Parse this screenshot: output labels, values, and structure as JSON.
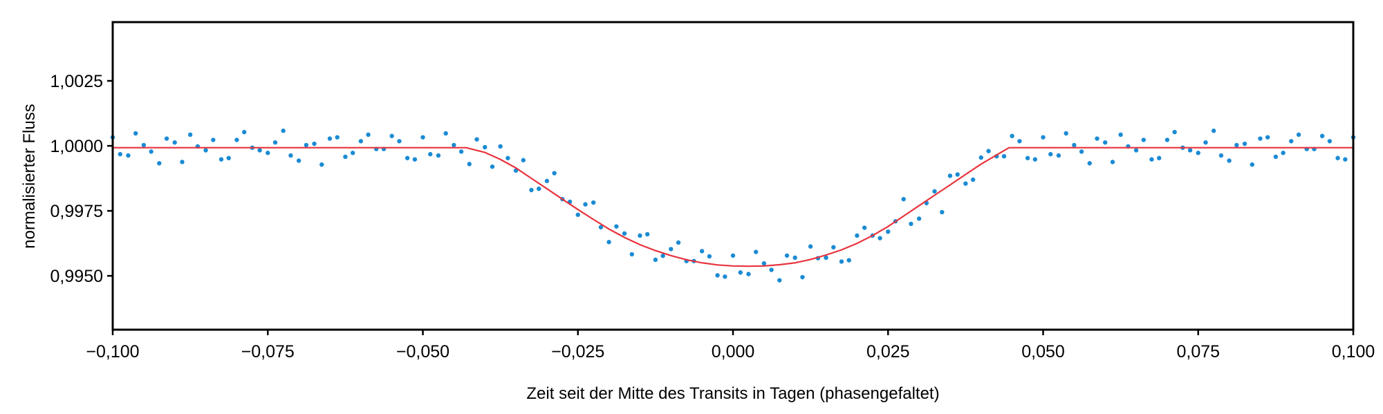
{
  "chart_data": {
    "type": "scatter",
    "title": "",
    "xlabel": "Zeit seit der Mitte des Transits in Tagen (phasengefaltet)",
    "ylabel": "normalisierter Fluss",
    "xlim": [
      -0.1,
      0.1
    ],
    "ylim": [
      0.99293,
      1.00476
    ],
    "grid": false,
    "x_ticks": [
      -0.1,
      -0.075,
      -0.05,
      -0.025,
      0.0,
      0.025,
      0.05,
      0.075,
      0.1
    ],
    "x_tick_labels": [
      "−0,100",
      "−0,075",
      "−0,050",
      "−0,025",
      "0,000",
      "0,025",
      "0,050",
      "0,075",
      "0,100"
    ],
    "y_ticks": [
      0.995,
      0.9975,
      1.0,
      1.0025
    ],
    "y_tick_labels": [
      "0,9950",
      "0,9975",
      "1,0000",
      "1,0025"
    ],
    "colors": {
      "points": "#1a8bd3",
      "model": "#e8323c",
      "axes": "#000000"
    },
    "series": [
      {
        "type": "scatter",
        "x": [
          -0.1,
          -0.0988,
          -0.0975,
          -0.0963,
          -0.095,
          -0.0938,
          -0.0925,
          -0.0913,
          -0.09,
          -0.0888,
          -0.0875,
          -0.0863,
          -0.085,
          -0.0838,
          -0.0825,
          -0.0813,
          -0.08,
          -0.0788,
          -0.0775,
          -0.0763,
          -0.075,
          -0.0738,
          -0.0725,
          -0.0713,
          -0.07,
          -0.0688,
          -0.0675,
          -0.0663,
          -0.065,
          -0.0638,
          -0.0625,
          -0.0613,
          -0.06,
          -0.0588,
          -0.0575,
          -0.0563,
          -0.055,
          -0.0538,
          -0.0525,
          -0.0513,
          -0.05,
          -0.0488,
          -0.0475,
          -0.0463,
          -0.045,
          -0.0438,
          -0.0425,
          -0.0413,
          -0.04,
          -0.0388,
          -0.0375,
          -0.0363,
          -0.035,
          -0.0338,
          -0.0325,
          -0.0313,
          -0.03,
          -0.0288,
          -0.0275,
          -0.0263,
          -0.025,
          -0.0238,
          -0.0225,
          -0.0213,
          -0.02,
          -0.0188,
          -0.0175,
          -0.0163,
          -0.015,
          -0.0138,
          -0.0125,
          -0.0113,
          -0.01,
          -0.0088,
          -0.0075,
          -0.0063,
          -0.005,
          -0.0038,
          -0.0025,
          -0.0013,
          0.0,
          0.0012,
          0.0025,
          0.0037,
          0.005,
          0.0062,
          0.0075,
          0.0087,
          0.01,
          0.0112,
          0.0125,
          0.0137,
          0.015,
          0.0162,
          0.0175,
          0.0187,
          0.02,
          0.0212,
          0.0225,
          0.0237,
          0.025,
          0.0262,
          0.0275,
          0.0287,
          0.03,
          0.0312,
          0.0325,
          0.0337,
          0.035,
          0.0362,
          0.0375,
          0.0387,
          0.04,
          0.0412,
          0.0425,
          0.0437,
          0.045,
          0.0462,
          0.0475,
          0.0487,
          0.05,
          0.0512,
          0.0525,
          0.0537,
          0.055,
          0.0562,
          0.0575,
          0.0587,
          0.06,
          0.0612,
          0.0625,
          0.0637,
          0.065,
          0.0662,
          0.0675,
          0.0687,
          0.07,
          0.0712,
          0.0725,
          0.0737,
          0.075,
          0.0762,
          0.0775,
          0.0787,
          0.08,
          0.0812,
          0.0825,
          0.0837,
          0.085,
          0.0862,
          0.0875,
          0.0887,
          0.09,
          0.0912,
          0.0925,
          0.0937,
          0.095,
          0.0962,
          0.0975,
          0.0987,
          0.1
        ],
        "y": [
          1.00033,
          0.99968,
          0.99963,
          1.00048,
          1.00003,
          0.99978,
          0.99933,
          1.00028,
          1.00013,
          0.99938,
          1.00043,
          0.99998,
          0.99983,
          1.00023,
          0.99948,
          0.99953,
          1.00023,
          1.00053,
          0.99993,
          0.99983,
          0.99973,
          1.00013,
          1.00058,
          0.99963,
          0.99943,
          1.00003,
          1.00008,
          0.99928,
          1.00028,
          1.00033,
          0.99958,
          0.99973,
          1.00018,
          1.00043,
          0.99988,
          0.99988,
          1.00038,
          1.00018,
          0.99953,
          0.99948,
          1.00033,
          0.99968,
          0.99963,
          1.00048,
          1.00003,
          0.99978,
          0.9993,
          1.00025,
          0.99995,
          0.9992,
          0.99998,
          0.99953,
          0.99905,
          0.99945,
          0.9983,
          0.99835,
          0.99865,
          0.99895,
          0.99795,
          0.99785,
          0.99735,
          0.99775,
          0.99782,
          0.99687,
          0.9963,
          0.9969,
          0.99663,
          0.99583,
          0.99655,
          0.9966,
          0.99562,
          0.99577,
          0.99603,
          0.99628,
          0.99557,
          0.99557,
          0.99595,
          0.99575,
          0.99502,
          0.99497,
          0.99578,
          0.99513,
          0.99507,
          0.99592,
          0.99548,
          0.99523,
          0.99483,
          0.99578,
          0.9957,
          0.99495,
          0.99613,
          0.99568,
          0.9957,
          0.9961,
          0.99555,
          0.9956,
          0.99655,
          0.99685,
          0.99655,
          0.99645,
          0.9967,
          0.9971,
          0.99795,
          0.997,
          0.9972,
          0.9978,
          0.99825,
          0.99745,
          0.99885,
          0.9989,
          0.99855,
          0.9987,
          0.99955,
          0.9998,
          0.9996,
          0.9996,
          1.00038,
          1.00018,
          0.99953,
          0.99948,
          1.00033,
          0.99968,
          0.99963,
          1.00048,
          1.00003,
          0.99978,
          0.99933,
          1.00028,
          1.00013,
          0.99938,
          1.00043,
          0.99998,
          0.99983,
          1.00023,
          0.99948,
          0.99953,
          1.00023,
          1.00053,
          0.99993,
          0.99983,
          0.99973,
          1.00013,
          1.00058,
          0.99963,
          0.99943,
          1.00003,
          1.00008,
          0.99928,
          1.00028,
          1.00033,
          0.99958,
          0.99973,
          1.00018,
          1.00043,
          0.99988,
          0.99988,
          1.00038,
          1.00018,
          0.99953,
          0.99948,
          1.00033
        ]
      },
      {
        "type": "line",
        "x": [
          -0.1,
          -0.043,
          -0.04,
          -0.0375,
          -0.035,
          -0.0325,
          -0.03,
          -0.0275,
          -0.025,
          -0.0225,
          -0.02,
          -0.0175,
          -0.015,
          -0.0125,
          -0.01,
          -0.0075,
          -0.005,
          -0.0025,
          0.0,
          0.0025,
          0.005,
          0.0075,
          0.01,
          0.0125,
          0.015,
          0.0175,
          0.02,
          0.0225,
          0.025,
          0.0275,
          0.03,
          0.0325,
          0.035,
          0.0375,
          0.04,
          0.0425,
          0.0445,
          0.1
        ],
        "y": [
          0.99993,
          0.99993,
          0.99975,
          0.99948,
          0.99915,
          0.99875,
          0.99835,
          0.99795,
          0.99755,
          0.99717,
          0.9968,
          0.99648,
          0.9962,
          0.99597,
          0.99578,
          0.99562,
          0.9955,
          0.99542,
          0.99538,
          0.99537,
          0.99538,
          0.99543,
          0.9955,
          0.99563,
          0.9958,
          0.996,
          0.99625,
          0.99655,
          0.9969,
          0.9973,
          0.9977,
          0.9981,
          0.9985,
          0.9989,
          0.9993,
          0.99965,
          0.99993,
          0.99993
        ]
      }
    ]
  }
}
